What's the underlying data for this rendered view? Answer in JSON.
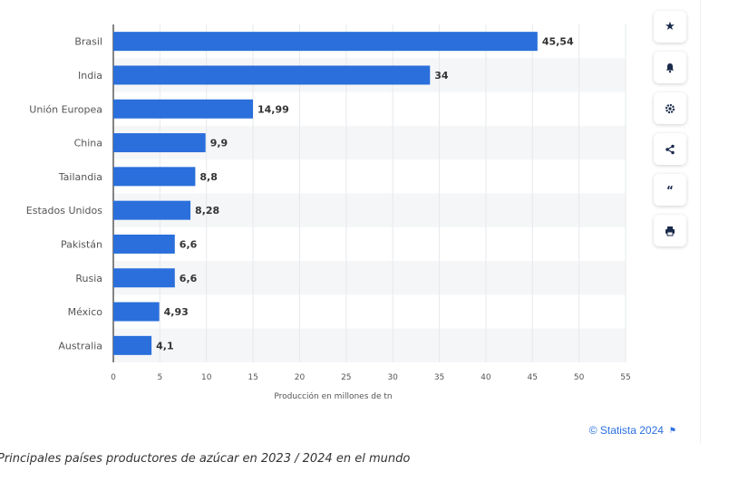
{
  "colors": {
    "bar": "#2a6fdb",
    "band": "#f5f6f8",
    "grid": "#e6e8eb",
    "axis_text": "#555555",
    "value_text": "#333333",
    "brand": "#2b6fe0"
  },
  "chart_data": {
    "type": "bar",
    "orientation": "horizontal",
    "categories": [
      "Brasil",
      "India",
      "Unión Europea",
      "China",
      "Tailandia",
      "Estados Unidos",
      "Pakistán",
      "Rusia",
      "México",
      "Australia"
    ],
    "values": [
      45.54,
      34,
      14.99,
      9.9,
      8.8,
      8.28,
      6.6,
      6.6,
      4.93,
      4.1
    ],
    "value_labels": [
      "45,54",
      "34",
      "14,99",
      "9,9",
      "8,8",
      "8,28",
      "6,6",
      "6,6",
      "4,93",
      "4,1"
    ],
    "xlabel": "Producción en millones de tn",
    "ylabel": "",
    "xlim": [
      0,
      55
    ],
    "xticks": [
      0,
      5,
      10,
      15,
      20,
      25,
      30,
      35,
      40,
      45,
      50,
      55
    ],
    "grid": true
  },
  "toolbar": {
    "items": [
      {
        "name": "favorite-icon",
        "glyph": "★"
      },
      {
        "name": "bell-icon",
        "glyph": "🔔"
      },
      {
        "name": "gear-icon",
        "glyph": "⚙"
      },
      {
        "name": "share-icon",
        "glyph": "<"
      },
      {
        "name": "quote-icon",
        "glyph": "❝"
      },
      {
        "name": "print-icon",
        "glyph": "⎙"
      }
    ]
  },
  "credit": {
    "text": "© Statista 2024",
    "flag_glyph": "⚑"
  },
  "caption": "Principales países productores de azúcar en 2023 / 2024 en el mundo"
}
